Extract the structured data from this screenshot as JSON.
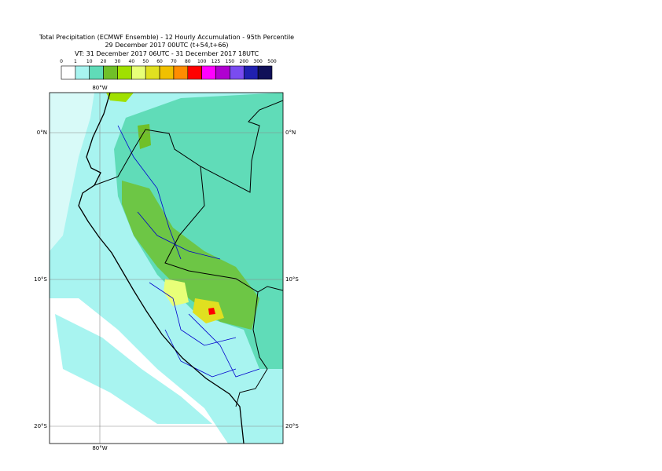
{
  "header": {
    "title_lines": [
      "Total Precipitation (ECMWF Ensemble) - 12 Hourly Accumulation - 95th Percentile",
      "29 December 2017 00UTC (t+54,t+66)",
      "VT: 31 December 2017 06UTC - 31 December 2017 18UTC"
    ]
  },
  "colorbar": {
    "labels": [
      0,
      1,
      10,
      20,
      30,
      40,
      50,
      60,
      70,
      80,
      100,
      125,
      150,
      200,
      300,
      500
    ],
    "colors": [
      "#ffffff",
      "#a8f4f0",
      "#60dcb8",
      "#70c028",
      "#a0e000",
      "#e8ff78",
      "#e0e020",
      "#f0c000",
      "#ff8c00",
      "#ff0000",
      "#ff00ff",
      "#b000d0",
      "#7a4cf0",
      "#2020b0",
      "#101058"
    ]
  },
  "map": {
    "lon_labels": [
      "80°W"
    ],
    "lat_labels": [
      "0°N",
      "10°S",
      "20°S"
    ]
  }
}
